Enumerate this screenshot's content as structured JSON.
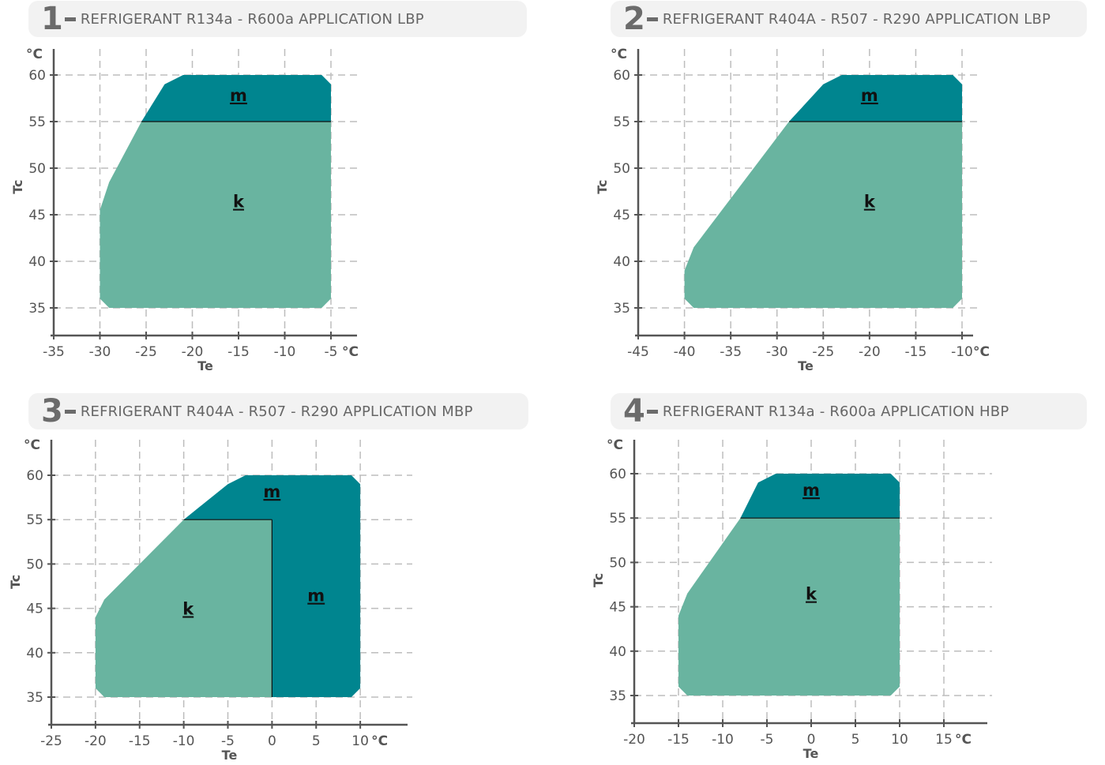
{
  "colors": {
    "k": "#69b4a0",
    "m": "#00858f"
  },
  "chart_data": [
    {
      "type": "area",
      "number": "1",
      "title": "REFRIGERANT R134a - R600a APPLICATION LBP",
      "xlabel": "Te",
      "ylabel": "Tc",
      "x_unit": "°C",
      "y_unit": "°C",
      "xlim": [
        -35,
        -5
      ],
      "ylim": [
        35,
        60
      ],
      "x_ticks": [
        -35,
        -30,
        -25,
        -20,
        -15,
        -10,
        -5
      ],
      "y_ticks": [
        35,
        40,
        45,
        50,
        55,
        60
      ],
      "grid": true,
      "regions": [
        {
          "label": "m",
          "color": "m",
          "points": [
            [
              -25.5,
              55
            ],
            [
              -23,
              59
            ],
            [
              -21,
              60
            ],
            [
              -6,
              60
            ],
            [
              -5,
              59
            ],
            [
              -5,
              55
            ]
          ]
        },
        {
          "label": "k",
          "color": "k",
          "points": [
            [
              -30,
              36
            ],
            [
              -30,
              45.5
            ],
            [
              -29,
              48.5
            ],
            [
              -25.5,
              55
            ],
            [
              -5,
              55
            ],
            [
              -5,
              36
            ],
            [
              -6,
              35
            ],
            [
              -29,
              35
            ]
          ]
        }
      ],
      "dividers": [
        [
          [
            -25.5,
            55
          ],
          [
            -5,
            55
          ]
        ]
      ],
      "region_labels": [
        {
          "text": "m",
          "x": -15,
          "y": 57.2
        },
        {
          "text": "k",
          "x": -15,
          "y": 45.8
        }
      ]
    },
    {
      "type": "area",
      "number": "2",
      "title": "REFRIGERANT R404A - R507 - R290 APPLICATION LBP",
      "xlabel": "Te",
      "ylabel": "Tc",
      "x_unit": "°C",
      "y_unit": "°C",
      "xlim": [
        -45,
        -10
      ],
      "ylim": [
        35,
        60
      ],
      "x_ticks": [
        -45,
        -40,
        -35,
        -30,
        -25,
        -20,
        -15,
        -10
      ],
      "y_ticks": [
        35,
        40,
        45,
        50,
        55,
        60
      ],
      "grid": true,
      "regions": [
        {
          "label": "m",
          "color": "m",
          "points": [
            [
              -28.7,
              55
            ],
            [
              -25,
              59
            ],
            [
              -23,
              60
            ],
            [
              -11,
              60
            ],
            [
              -10,
              59
            ],
            [
              -10,
              55
            ]
          ]
        },
        {
          "label": "k",
          "color": "k",
          "points": [
            [
              -40,
              36
            ],
            [
              -40,
              39
            ],
            [
              -39,
              41.5
            ],
            [
              -28.7,
              55
            ],
            [
              -10,
              55
            ],
            [
              -10,
              36
            ],
            [
              -11,
              35
            ],
            [
              -39,
              35
            ]
          ]
        }
      ],
      "dividers": [
        [
          [
            -28.7,
            55
          ],
          [
            -10,
            55
          ]
        ]
      ],
      "region_labels": [
        {
          "text": "m",
          "x": -20,
          "y": 57.2
        },
        {
          "text": "k",
          "x": -20,
          "y": 45.8
        }
      ]
    },
    {
      "type": "area",
      "number": "3",
      "title": "REFRIGERANT R404A - R507 - R290 APPLICATION MBP",
      "xlabel": "Te",
      "ylabel": "Tc",
      "x_unit": "°C",
      "y_unit": "°C",
      "xlim": [
        -25,
        15
      ],
      "ylim": [
        35,
        60
      ],
      "x_ticks": [
        -25,
        -20,
        -15,
        -10,
        -5,
        0,
        5,
        10
      ],
      "y_ticks": [
        35,
        40,
        45,
        50,
        55,
        60
      ],
      "grid": true,
      "regions": [
        {
          "label": "m",
          "color": "m",
          "points": [
            [
              -10,
              55
            ],
            [
              -5,
              59
            ],
            [
              -3,
              60
            ],
            [
              9,
              60
            ],
            [
              10,
              59
            ],
            [
              10,
              36
            ],
            [
              9,
              35
            ],
            [
              0,
              35
            ],
            [
              0,
              55
            ]
          ]
        },
        {
          "label": "k",
          "color": "k",
          "points": [
            [
              -20,
              36
            ],
            [
              -20,
              44
            ],
            [
              -19,
              46
            ],
            [
              -10,
              55
            ],
            [
              0,
              55
            ],
            [
              0,
              35
            ],
            [
              -19,
              35
            ]
          ]
        }
      ],
      "dividers": [
        [
          [
            -10,
            55
          ],
          [
            0,
            55
          ]
        ],
        [
          [
            0,
            55
          ],
          [
            0,
            35
          ]
        ]
      ],
      "region_labels": [
        {
          "text": "m",
          "x": 0,
          "y": 57.5
        },
        {
          "text": "m",
          "x": 5,
          "y": 45.8
        },
        {
          "text": "k",
          "x": -9.5,
          "y": 44.3
        }
      ]
    },
    {
      "type": "area",
      "number": "4",
      "title": "REFRIGERANT R134a - R600a APPLICATION HBP",
      "xlabel": "Te",
      "ylabel": "Tc",
      "x_unit": "°C",
      "y_unit": "°C",
      "xlim": [
        -20,
        15
      ],
      "ylim": [
        35,
        60
      ],
      "x_ticks": [
        -20,
        -15,
        -10,
        -5,
        0,
        5,
        10,
        15
      ],
      "y_ticks": [
        35,
        40,
        45,
        50,
        55,
        60
      ],
      "grid": true,
      "regions": [
        {
          "label": "m",
          "color": "m",
          "points": [
            [
              -8,
              55
            ],
            [
              -6,
              59
            ],
            [
              -4,
              60
            ],
            [
              9,
              60
            ],
            [
              10,
              59
            ],
            [
              10,
              55
            ]
          ]
        },
        {
          "label": "k",
          "color": "k",
          "points": [
            [
              -15,
              36
            ],
            [
              -15,
              44
            ],
            [
              -14,
              46.5
            ],
            [
              -8,
              55
            ],
            [
              10,
              55
            ],
            [
              10,
              36
            ],
            [
              9,
              35
            ],
            [
              -14,
              35
            ]
          ]
        }
      ],
      "dividers": [
        [
          [
            -8,
            55
          ],
          [
            10,
            55
          ]
        ]
      ],
      "region_labels": [
        {
          "text": "m",
          "x": 0,
          "y": 57.5
        },
        {
          "text": "k",
          "x": 0,
          "y": 45.8
        }
      ]
    }
  ]
}
